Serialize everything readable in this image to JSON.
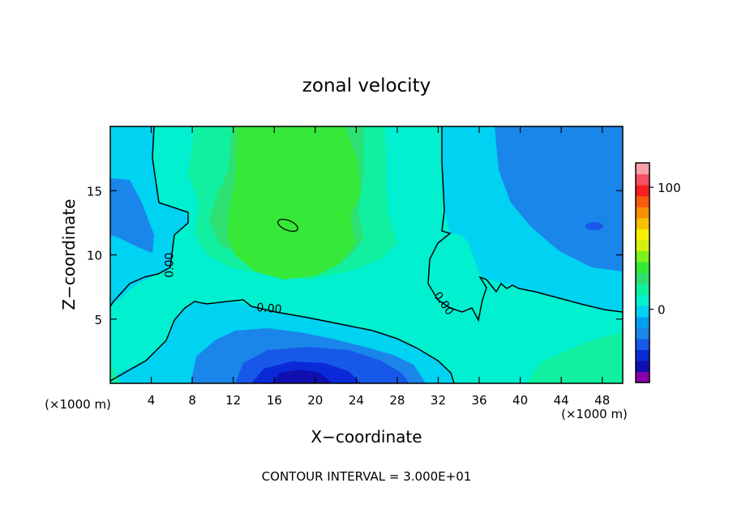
{
  "chart_data": {
    "type": "heatmap",
    "title": "zonal velocity",
    "xlabel": "X−coordinate",
    "ylabel": "Z−coordinate",
    "x_unit_left": "(×1000 m)",
    "x_unit_right": "(×1000 m)",
    "x_range": [
      0,
      50
    ],
    "y_range": [
      0,
      20
    ],
    "x_ticks": [
      4,
      8,
      12,
      16,
      20,
      24,
      28,
      32,
      36,
      40,
      44,
      48
    ],
    "y_ticks": [
      5,
      10,
      15
    ],
    "contour_labels": [
      {
        "text": "0.00",
        "x": 5.8,
        "y": 9.2,
        "angle": -90
      },
      {
        "text": "0.00",
        "x": 15.5,
        "y": 5.8,
        "angle": 5
      },
      {
        "text": "0.00",
        "x": 32.5,
        "y": 6.2,
        "angle": 55
      }
    ],
    "footer": "CONTOUR INTERVAL = 3.000E+01",
    "colorbar": {
      "range": [
        -60,
        120
      ],
      "tick_labels": [
        "100",
        "0"
      ],
      "tick_values": [
        100,
        0
      ],
      "colors": [
        "#8800a8",
        "#1010b0",
        "#0a2ad8",
        "#1858e8",
        "#1a86ea",
        "#00a0f0",
        "#00d2f2",
        "#00f0d0",
        "#10f0a0",
        "#2ee072",
        "#36e838",
        "#7cf220",
        "#d4f010",
        "#f8f000",
        "#f8c000",
        "#f89000",
        "#f85a10",
        "#f82020",
        "#f85060",
        "#f8a0a8"
      ]
    },
    "regions": [
      {
        "name": "background",
        "value": 15
      },
      {
        "name": "upper-green-core",
        "value": 45
      },
      {
        "name": "upper-right-blue",
        "value": -15
      },
      {
        "name": "lower-blue",
        "value": -30
      },
      {
        "name": "bottom-dark-blue",
        "value": -45
      }
    ]
  }
}
